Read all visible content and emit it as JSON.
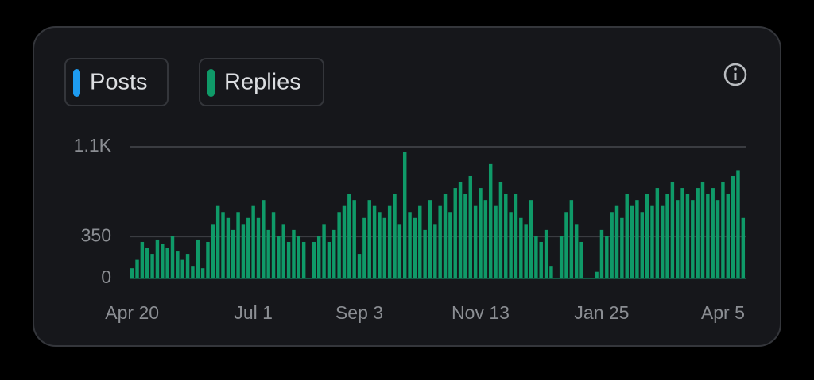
{
  "chart_data": {
    "type": "bar",
    "categories": [
      "Apr 20",
      null,
      null,
      null,
      null,
      null,
      null,
      null,
      null,
      null,
      null,
      null,
      null,
      null,
      null,
      null,
      null,
      null,
      null,
      null,
      null,
      null,
      null,
      null,
      "Jul 1",
      null,
      null,
      null,
      null,
      null,
      null,
      null,
      null,
      null,
      null,
      null,
      null,
      null,
      null,
      null,
      null,
      null,
      null,
      null,
      null,
      "Sep 3",
      null,
      null,
      null,
      null,
      null,
      null,
      null,
      null,
      null,
      null,
      null,
      null,
      null,
      null,
      null,
      null,
      null,
      null,
      null,
      null,
      null,
      null,
      null,
      "Nov 13",
      null,
      null,
      null,
      null,
      null,
      null,
      null,
      null,
      null,
      null,
      null,
      null,
      null,
      null,
      null,
      null,
      null,
      null,
      null,
      null,
      null,
      null,
      null,
      "Jan 25",
      null,
      null,
      null,
      null,
      null,
      null,
      null,
      null,
      null,
      null,
      null,
      null,
      null,
      null,
      null,
      null,
      null,
      null,
      null,
      null,
      null,
      null,
      null,
      "Apr 5",
      null,
      null,
      null,
      null
    ],
    "series": [
      {
        "name": "Posts",
        "color": "#1d9bf0",
        "values": [
          5,
          5,
          5,
          5,
          5,
          5,
          5,
          5,
          5,
          5,
          5,
          5,
          5,
          5,
          5,
          5,
          5,
          5,
          5,
          5,
          5,
          5,
          5,
          5,
          5,
          5,
          5,
          5,
          5,
          5,
          5,
          5,
          5,
          5,
          5,
          0,
          5,
          5,
          5,
          5,
          5,
          5,
          5,
          5,
          5,
          5,
          5,
          5,
          5,
          5,
          5,
          5,
          5,
          5,
          5,
          5,
          5,
          5,
          5,
          5,
          5,
          5,
          5,
          5,
          5,
          5,
          5,
          5,
          5,
          5,
          5,
          5,
          5,
          5,
          5,
          5,
          5,
          5,
          5,
          5,
          5,
          5,
          5,
          5,
          0,
          5,
          5,
          5,
          5,
          5,
          0,
          0,
          5,
          5,
          5,
          5,
          5,
          5,
          5,
          5,
          5,
          5,
          5,
          5,
          5,
          5,
          5,
          5,
          5,
          5,
          5,
          5,
          5,
          5,
          5,
          5,
          5,
          5,
          5,
          5,
          5,
          5
        ]
      },
      {
        "name": "Replies",
        "color": "#0f9a68",
        "values": [
          80,
          150,
          300,
          250,
          200,
          320,
          280,
          250,
          350,
          220,
          150,
          200,
          100,
          320,
          80,
          300,
          450,
          600,
          550,
          500,
          400,
          550,
          450,
          500,
          600,
          500,
          650,
          400,
          550,
          350,
          450,
          300,
          400,
          350,
          300,
          0,
          300,
          350,
          450,
          300,
          400,
          550,
          600,
          700,
          650,
          200,
          500,
          650,
          600,
          550,
          500,
          600,
          700,
          450,
          1050,
          550,
          500,
          600,
          400,
          650,
          450,
          600,
          700,
          550,
          750,
          800,
          700,
          850,
          600,
          750,
          650,
          950,
          600,
          800,
          700,
          550,
          700,
          500,
          450,
          650,
          350,
          300,
          400,
          100,
          0,
          350,
          550,
          650,
          450,
          300,
          0,
          0,
          50,
          400,
          350,
          550,
          600,
          500,
          700,
          600,
          650,
          550,
          700,
          600,
          750,
          600,
          700,
          800,
          650,
          750,
          700,
          650,
          750,
          800,
          700,
          750,
          650,
          800,
          700,
          850,
          900,
          500
        ]
      }
    ],
    "ylim": [
      0,
      1100
    ],
    "yticks": [
      0,
      350,
      {
        "value": 1100,
        "label": "1.1K"
      }
    ],
    "grid": true
  }
}
